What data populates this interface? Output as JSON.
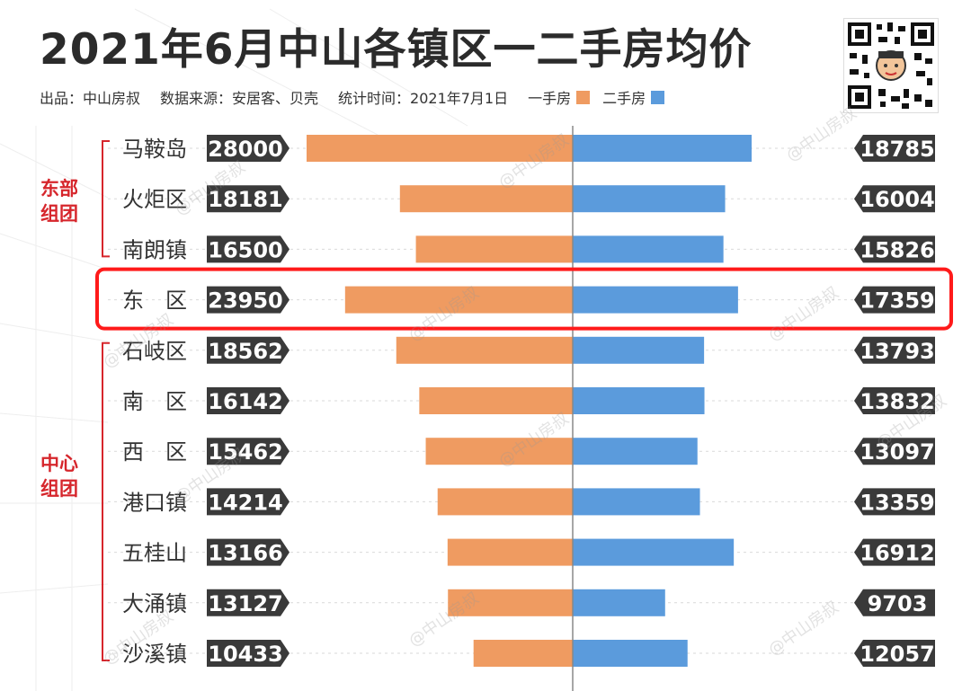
{
  "header": {
    "title": "2021年6月中山各镇区一二手房均价",
    "source": "出品：中山房叔",
    "data_source": "数据来源：安居客、贝壳",
    "stat_time": "统计时间：2021年7月1日",
    "watermark": "@中山房叔"
  },
  "colors": {
    "new_house": "#ef9b61",
    "second_hand": "#5b9bdc",
    "label_bg": "#3a3a3a",
    "group": "#d6262c",
    "highlight": "#ff1a1a"
  },
  "groups": [
    {
      "name_line1": "东部",
      "name_line2": "组团"
    },
    {
      "name_line1": "中心",
      "name_line2": "组团"
    }
  ],
  "chart_data": {
    "type": "bar",
    "orientation": "horizontal-diverging",
    "categories": [
      "马鞍岛",
      "火炬区",
      "南朗镇",
      "东　区",
      "石岐区",
      "南　区",
      "西　区",
      "港口镇",
      "五桂山",
      "大涌镇",
      "沙溪镇"
    ],
    "series": [
      {
        "name": "一手房",
        "values": [
          28000,
          18181,
          16500,
          23950,
          18562,
          16142,
          15462,
          14214,
          13166,
          13127,
          10433
        ]
      },
      {
        "name": "二手房",
        "values": [
          18785,
          16004,
          15826,
          17359,
          13793,
          13832,
          13097,
          13359,
          16912,
          9703,
          12057
        ]
      }
    ],
    "highlighted_category": "东　区",
    "legend_position": "top"
  }
}
